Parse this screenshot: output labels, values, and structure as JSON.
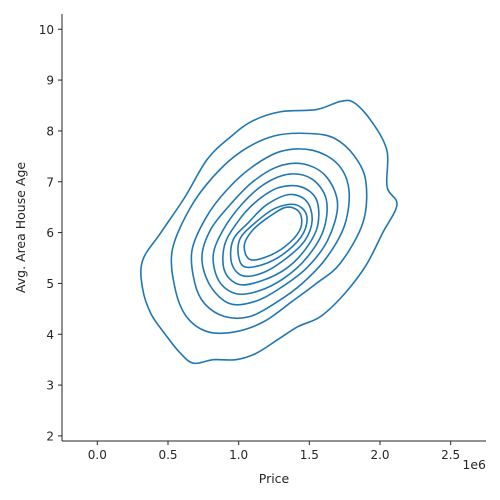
{
  "chart_data": {
    "type": "kde-contour",
    "xlabel": "Price",
    "ylabel": "Avg. Area House Age",
    "x_offset_label": "1e6",
    "xlim": [
      -0.25,
      2.75
    ],
    "ylim": [
      1.9,
      10.3
    ],
    "x_ticks": [
      0.0,
      0.5,
      1.0,
      1.5,
      2.0,
      2.5
    ],
    "x_tick_labels": [
      "0.0",
      "0.5",
      "1.0",
      "1.5",
      "2.0",
      "2.5"
    ],
    "y_ticks": [
      2,
      3,
      4,
      5,
      6,
      7,
      8,
      9,
      10
    ],
    "y_tick_labels": [
      "2",
      "3",
      "4",
      "5",
      "6",
      "7",
      "8",
      "9",
      "10"
    ],
    "x_scale": "x 1e6",
    "grid": false,
    "color": "#1f77b4",
    "contours": [
      [
        [
          0.68,
          3.43
        ],
        [
          0.82,
          3.5
        ],
        [
          0.98,
          3.5
        ],
        [
          1.12,
          3.62
        ],
        [
          1.28,
          3.9
        ],
        [
          1.42,
          4.15
        ],
        [
          1.58,
          4.35
        ],
        [
          1.75,
          4.8
        ],
        [
          1.9,
          5.35
        ],
        [
          2.02,
          6.0
        ],
        [
          2.12,
          6.55
        ],
        [
          2.05,
          6.9
        ],
        [
          2.05,
          7.6
        ],
        [
          1.95,
          8.15
        ],
        [
          1.82,
          8.55
        ],
        [
          1.72,
          8.58
        ],
        [
          1.55,
          8.42
        ],
        [
          1.3,
          8.38
        ],
        [
          1.1,
          8.2
        ],
        [
          0.95,
          7.9
        ],
        [
          0.78,
          7.45
        ],
        [
          0.62,
          6.7
        ],
        [
          0.45,
          6.0
        ],
        [
          0.32,
          5.45
        ],
        [
          0.32,
          4.9
        ],
        [
          0.38,
          4.4
        ],
        [
          0.48,
          4.0
        ],
        [
          0.58,
          3.65
        ]
      ],
      [
        [
          0.78,
          4.05
        ],
        [
          0.98,
          4.05
        ],
        [
          1.18,
          4.25
        ],
        [
          1.38,
          4.65
        ],
        [
          1.55,
          5.0
        ],
        [
          1.72,
          5.4
        ],
        [
          1.88,
          6.2
        ],
        [
          1.9,
          7.0
        ],
        [
          1.82,
          7.5
        ],
        [
          1.68,
          7.85
        ],
        [
          1.5,
          7.95
        ],
        [
          1.25,
          7.9
        ],
        [
          1.02,
          7.6
        ],
        [
          0.82,
          7.1
        ],
        [
          0.65,
          6.45
        ],
        [
          0.53,
          5.65
        ],
        [
          0.55,
          4.9
        ],
        [
          0.63,
          4.35
        ]
      ],
      [
        [
          0.9,
          4.35
        ],
        [
          1.08,
          4.35
        ],
        [
          1.28,
          4.65
        ],
        [
          1.45,
          5.0
        ],
        [
          1.62,
          5.5
        ],
        [
          1.75,
          6.15
        ],
        [
          1.78,
          6.85
        ],
        [
          1.7,
          7.35
        ],
        [
          1.52,
          7.62
        ],
        [
          1.3,
          7.6
        ],
        [
          1.1,
          7.3
        ],
        [
          0.92,
          6.85
        ],
        [
          0.77,
          6.3
        ],
        [
          0.67,
          5.65
        ],
        [
          0.69,
          5.0
        ],
        [
          0.76,
          4.6
        ]
      ],
      [
        [
          0.94,
          4.6
        ],
        [
          1.12,
          4.65
        ],
        [
          1.3,
          4.92
        ],
        [
          1.48,
          5.3
        ],
        [
          1.63,
          5.85
        ],
        [
          1.7,
          6.55
        ],
        [
          1.62,
          7.1
        ],
        [
          1.46,
          7.35
        ],
        [
          1.28,
          7.3
        ],
        [
          1.1,
          7.0
        ],
        [
          0.94,
          6.55
        ],
        [
          0.8,
          6.05
        ],
        [
          0.74,
          5.5
        ],
        [
          0.8,
          4.95
        ]
      ],
      [
        [
          0.98,
          4.8
        ],
        [
          1.14,
          4.85
        ],
        [
          1.32,
          5.1
        ],
        [
          1.48,
          5.5
        ],
        [
          1.6,
          6.05
        ],
        [
          1.62,
          6.65
        ],
        [
          1.52,
          7.05
        ],
        [
          1.36,
          7.15
        ],
        [
          1.18,
          6.95
        ],
        [
          1.02,
          6.55
        ],
        [
          0.89,
          6.05
        ],
        [
          0.82,
          5.55
        ],
        [
          0.86,
          5.05
        ]
      ],
      [
        [
          1.0,
          4.98
        ],
        [
          1.16,
          5.05
        ],
        [
          1.34,
          5.3
        ],
        [
          1.48,
          5.7
        ],
        [
          1.56,
          6.15
        ],
        [
          1.55,
          6.65
        ],
        [
          1.44,
          6.9
        ],
        [
          1.28,
          6.88
        ],
        [
          1.12,
          6.6
        ],
        [
          0.99,
          6.2
        ],
        [
          0.9,
          5.75
        ],
        [
          0.9,
          5.25
        ]
      ],
      [
        [
          1.03,
          5.15
        ],
        [
          1.18,
          5.22
        ],
        [
          1.34,
          5.5
        ],
        [
          1.47,
          5.85
        ],
        [
          1.52,
          6.25
        ],
        [
          1.48,
          6.62
        ],
        [
          1.36,
          6.75
        ],
        [
          1.2,
          6.55
        ],
        [
          1.07,
          6.2
        ],
        [
          0.96,
          5.85
        ],
        [
          0.95,
          5.4
        ]
      ],
      [
        [
          1.05,
          5.32
        ],
        [
          1.2,
          5.4
        ],
        [
          1.35,
          5.65
        ],
        [
          1.46,
          6.0
        ],
        [
          1.48,
          6.35
        ],
        [
          1.4,
          6.55
        ],
        [
          1.26,
          6.48
        ],
        [
          1.12,
          6.2
        ],
        [
          1.01,
          5.88
        ],
        [
          1.0,
          5.52
        ]
      ],
      [
        [
          1.08,
          5.47
        ],
        [
          1.22,
          5.55
        ],
        [
          1.36,
          5.8
        ],
        [
          1.44,
          6.1
        ],
        [
          1.43,
          6.4
        ],
        [
          1.34,
          6.5
        ],
        [
          1.22,
          6.32
        ],
        [
          1.1,
          6.05
        ],
        [
          1.04,
          5.75
        ]
      ]
    ]
  }
}
